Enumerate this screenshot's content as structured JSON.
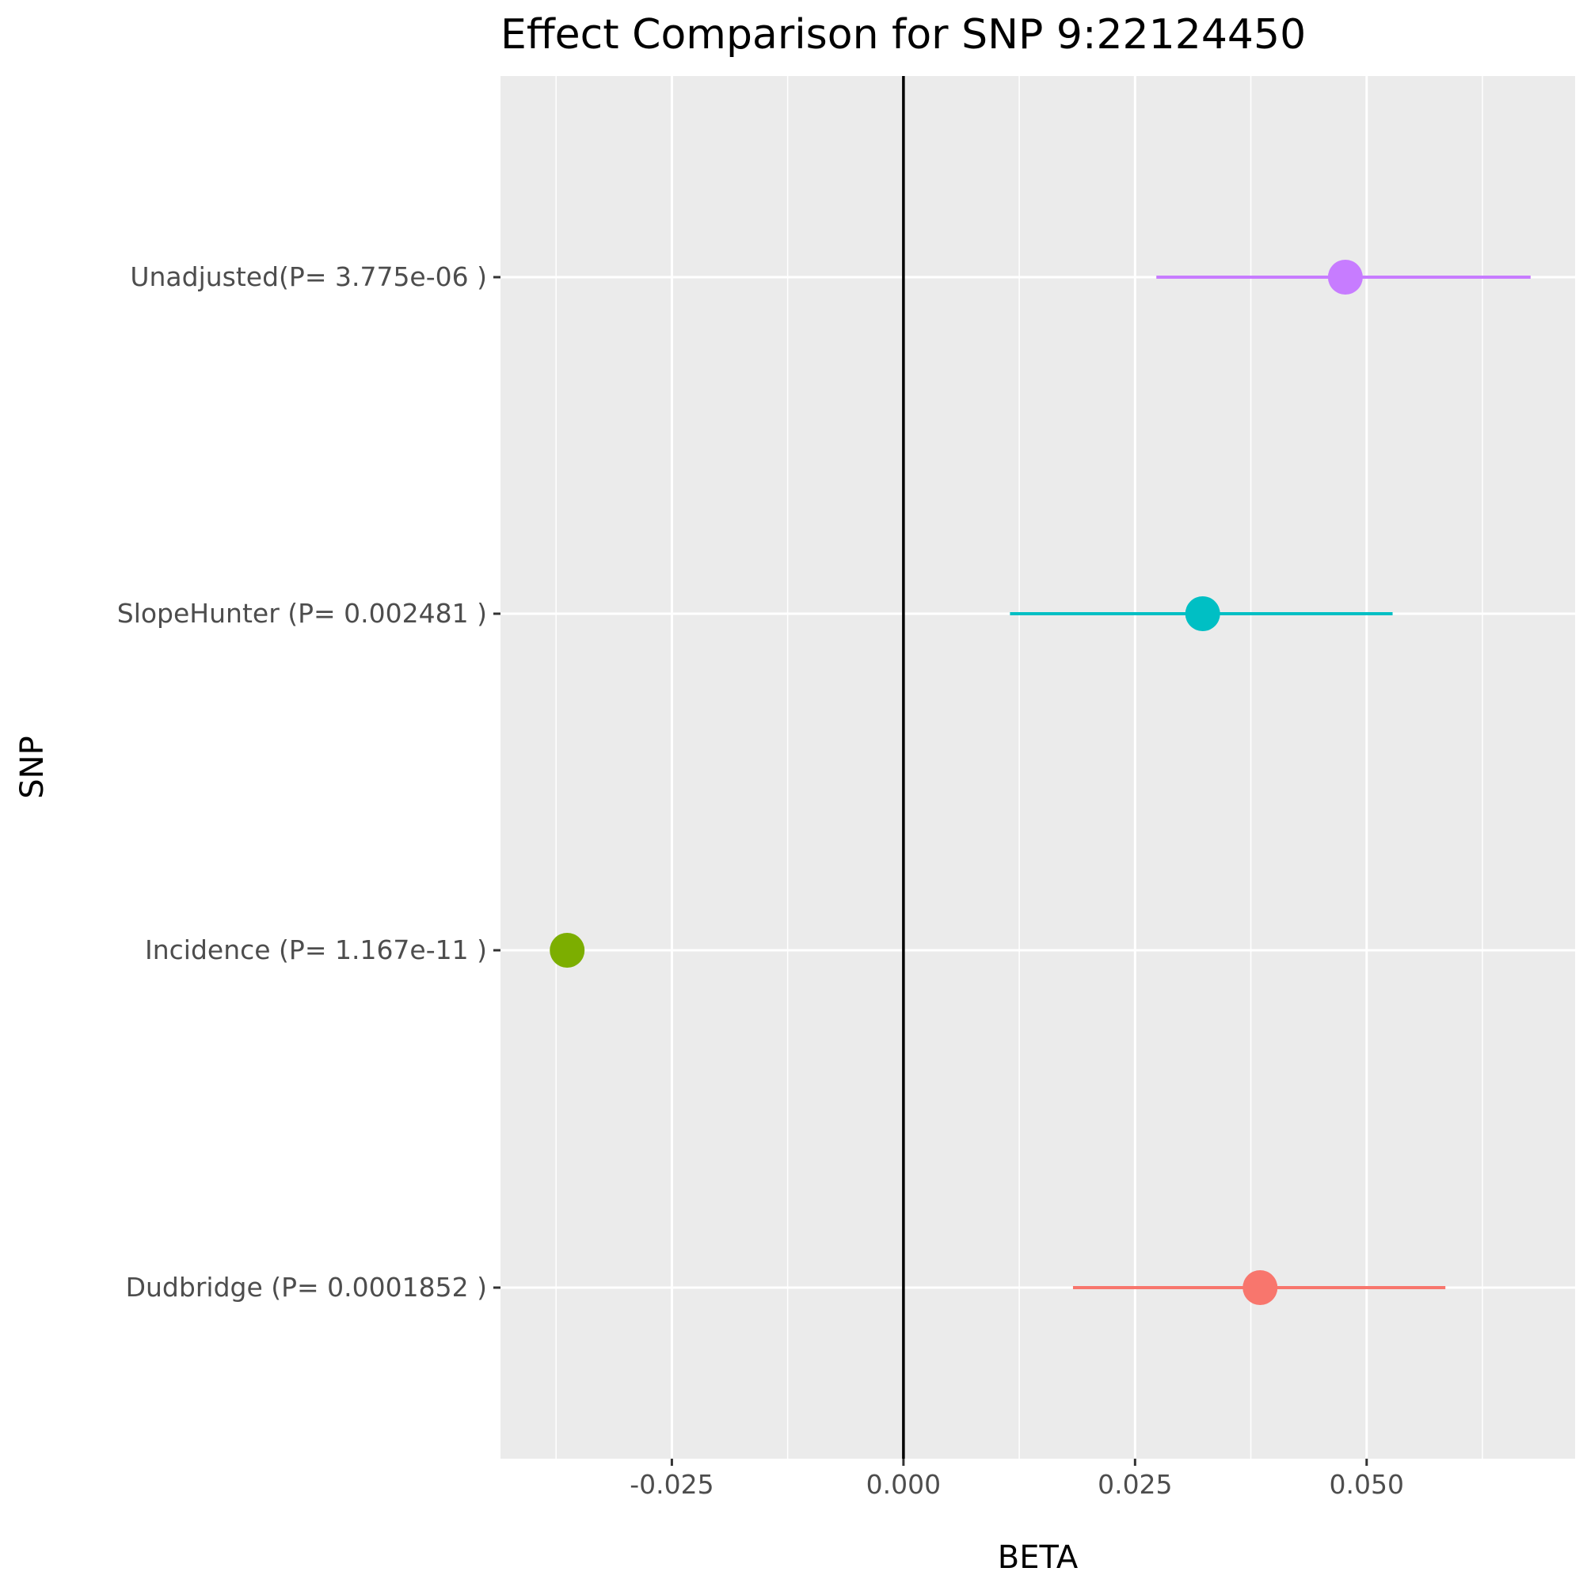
{
  "chart_data": {
    "type": "scatter",
    "title": "Effect Comparison for SNP 9:22124450",
    "xlabel": "BETA",
    "ylabel": "SNP",
    "xlim": [
      -0.0435,
      0.0725
    ],
    "x_ticks": [
      -0.025,
      0.0,
      0.025,
      0.05
    ],
    "x_tick_labels": [
      "-0.025",
      "0.000",
      "0.025",
      "0.050"
    ],
    "reference_line_x": 0,
    "grid": true,
    "legend": "none",
    "categories": [
      "Dudbridge (P= 0.0001852 )",
      "Incidence (P= 1.167e-11 )",
      "SlopeHunter (P= 0.002481 )",
      "Unadjusted(P= 3.775e-06 )"
    ],
    "series": [
      {
        "category": "Dudbridge (P= 0.0001852 )",
        "beta": 0.0385,
        "ci_low": 0.0183,
        "ci_high": 0.0585,
        "color": "#F8766D"
      },
      {
        "category": "Incidence (P= 1.167e-11 )",
        "beta": -0.0363,
        "ci_low": null,
        "ci_high": null,
        "color": "#7CAE00"
      },
      {
        "category": "SlopeHunter (P= 0.002481 )",
        "beta": 0.0323,
        "ci_low": 0.0115,
        "ci_high": 0.0528,
        "color": "#00BFC4"
      },
      {
        "category": "Unadjusted(P= 3.775e-06 )",
        "beta": 0.0477,
        "ci_low": 0.0273,
        "ci_high": 0.0677,
        "color": "#C77CFF"
      }
    ]
  },
  "colors": {
    "panel_background": "#EBEBEB",
    "grid_line": "#FFFFFF",
    "reference_line": "#000000",
    "tick_text": "#4D4D4D"
  }
}
